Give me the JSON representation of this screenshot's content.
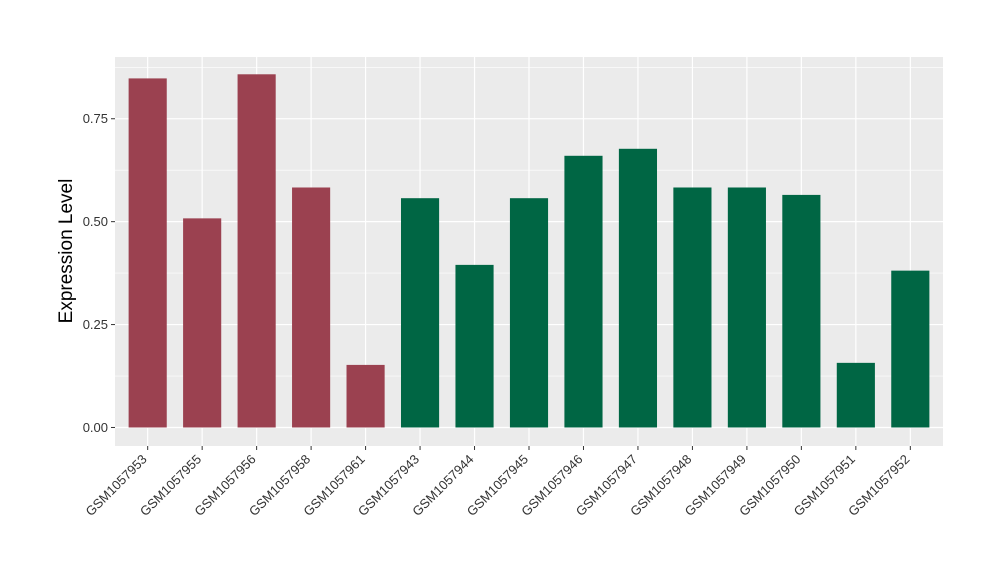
{
  "chart_data": {
    "type": "bar",
    "title": "",
    "xlabel": "",
    "ylabel": "Expression Level",
    "categories": [
      "GSM1057953",
      "GSM1057955",
      "GSM1057956",
      "GSM1057958",
      "GSM1057961",
      "GSM1057943",
      "GSM1057944",
      "GSM1057945",
      "GSM1057946",
      "GSM1057947",
      "GSM1057948",
      "GSM1057949",
      "GSM1057950",
      "GSM1057951",
      "GSM1057952"
    ],
    "values": [
      0.848,
      0.508,
      0.858,
      0.583,
      0.152,
      0.557,
      0.395,
      0.557,
      0.66,
      0.677,
      0.583,
      0.583,
      0.565,
      0.157,
      0.381
    ],
    "group_colors": [
      "#9b4150",
      "#9b4150",
      "#9b4150",
      "#9b4150",
      "#9b4150",
      "#006644",
      "#006644",
      "#006644",
      "#006644",
      "#006644",
      "#006644",
      "#006644",
      "#006644",
      "#006644",
      "#006644"
    ],
    "ylim": [
      -0.045,
      0.9
    ],
    "yticks": [
      0,
      0.25,
      0.5,
      0.75
    ],
    "ytick_labels": [
      "0.00",
      "0.25",
      "0.50",
      "0.75"
    ],
    "grid": true,
    "panel_background": "#ebebeb",
    "grid_color": "#ffffff"
  }
}
